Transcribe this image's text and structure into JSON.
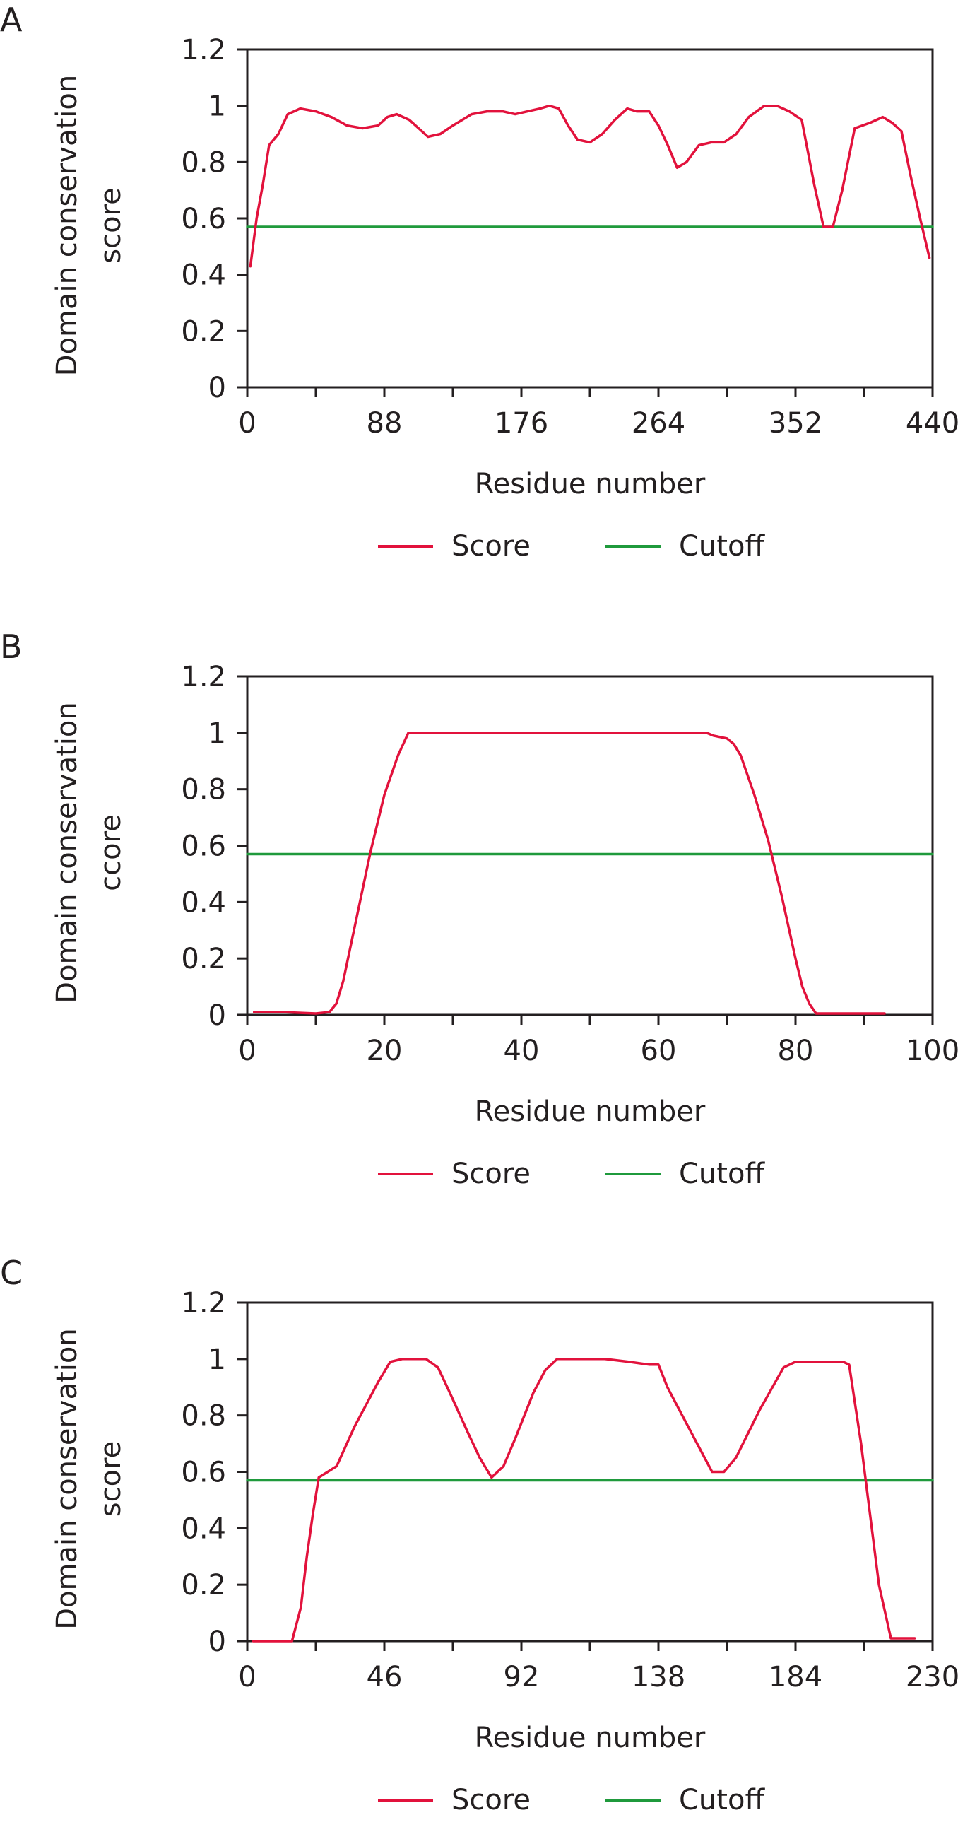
{
  "colors": {
    "score": "#e2123c",
    "cutoff": "#1f9a3c",
    "axis": "#231f20"
  },
  "chart_data": [
    {
      "panel": "A",
      "type": "line",
      "xlabel": "Residue number",
      "ylabel": [
        "Domain conservation",
        "score"
      ],
      "xlim": [
        0,
        440
      ],
      "ylim": [
        0,
        1.2
      ],
      "xticks": [
        0,
        88,
        176,
        264,
        352,
        440
      ],
      "yticks": [
        0,
        0.2,
        0.4,
        0.6,
        0.8,
        1,
        1.2
      ],
      "xtick_labels": [
        "0",
        "88",
        "176",
        "264",
        "352",
        "440"
      ],
      "ytick_labels": [
        "0",
        "0.2",
        "0.4",
        "0.6",
        "0.8",
        "1",
        "1.2"
      ],
      "legend": [
        "Score",
        "Cutoff"
      ],
      "series": [
        {
          "name": "Score",
          "color": "#e2123c",
          "x": [
            2,
            6,
            10,
            14,
            20,
            26,
            34,
            44,
            54,
            64,
            74,
            84,
            90,
            96,
            104,
            110,
            116,
            124,
            132,
            144,
            154,
            164,
            172,
            180,
            188,
            194,
            200,
            206,
            212,
            220,
            228,
            236,
            244,
            250,
            258,
            264,
            270,
            276,
            282,
            290,
            298,
            306,
            314,
            322,
            332,
            340,
            348,
            356,
            364,
            370,
            376,
            382,
            390,
            400,
            408,
            414,
            420,
            426,
            432,
            438
          ],
          "y": [
            0.43,
            0.6,
            0.72,
            0.86,
            0.9,
            0.97,
            0.99,
            0.98,
            0.96,
            0.93,
            0.92,
            0.93,
            0.96,
            0.97,
            0.95,
            0.92,
            0.89,
            0.9,
            0.93,
            0.97,
            0.98,
            0.98,
            0.97,
            0.98,
            0.99,
            1.0,
            0.99,
            0.93,
            0.88,
            0.87,
            0.9,
            0.95,
            0.99,
            0.98,
            0.98,
            0.93,
            0.86,
            0.78,
            0.8,
            0.86,
            0.87,
            0.87,
            0.9,
            0.96,
            1.0,
            1.0,
            0.98,
            0.95,
            0.72,
            0.57,
            0.57,
            0.7,
            0.92,
            0.94,
            0.96,
            0.94,
            0.91,
            0.75,
            0.6,
            0.46
          ]
        },
        {
          "name": "Cutoff",
          "color": "#1f9a3c",
          "x": [
            0,
            440
          ],
          "y": [
            0.57,
            0.57
          ]
        }
      ]
    },
    {
      "panel": "B",
      "type": "line",
      "xlabel": "Residue number",
      "ylabel": [
        "Domain conservation",
        "ccore"
      ],
      "xlim": [
        0,
        100
      ],
      "ylim": [
        0,
        1.2
      ],
      "xticks": [
        0,
        20,
        40,
        60,
        80,
        100
      ],
      "yticks": [
        0,
        0.2,
        0.4,
        0.6,
        0.8,
        1,
        1.2
      ],
      "xtick_labels": [
        "0",
        "20",
        "40",
        "60",
        "80",
        "100"
      ],
      "ytick_labels": [
        "0",
        "0.2",
        "0.4",
        "0.6",
        "0.8",
        "1",
        "1.2"
      ],
      "legend": [
        "Score",
        "Cutoff"
      ],
      "series": [
        {
          "name": "Score",
          "color": "#e2123c",
          "x": [
            1,
            5,
            10,
            12,
            13,
            14,
            16,
            18,
            20,
            22,
            23.5,
            30,
            40,
            50,
            60,
            67,
            68,
            70,
            71,
            72,
            74,
            76,
            77,
            78,
            80,
            81,
            82,
            83,
            88,
            93
          ],
          "y": [
            0.01,
            0.01,
            0.005,
            0.01,
            0.04,
            0.12,
            0.35,
            0.58,
            0.78,
            0.92,
            1.0,
            1.0,
            1.0,
            1.0,
            1.0,
            1.0,
            0.99,
            0.98,
            0.96,
            0.92,
            0.78,
            0.62,
            0.52,
            0.42,
            0.2,
            0.1,
            0.04,
            0.005,
            0.005,
            0.005
          ]
        },
        {
          "name": "Cutoff",
          "color": "#1f9a3c",
          "x": [
            0,
            100
          ],
          "y": [
            0.57,
            0.57
          ]
        }
      ]
    },
    {
      "panel": "C",
      "type": "line",
      "xlabel": "Residue number",
      "ylabel": [
        "Domain conservation",
        "score"
      ],
      "xlim": [
        0,
        230
      ],
      "ylim": [
        0,
        1.2
      ],
      "xticks": [
        0,
        46,
        92,
        138,
        184,
        230
      ],
      "yticks": [
        0,
        0.2,
        0.4,
        0.6,
        0.8,
        1,
        1.2
      ],
      "xtick_labels": [
        "0",
        "46",
        "92",
        "138",
        "184",
        "230"
      ],
      "ytick_labels": [
        "0",
        "0.2",
        "0.4",
        "0.6",
        "0.8",
        "1",
        "1.2"
      ],
      "legend": [
        "Score",
        "Cutoff"
      ],
      "series": [
        {
          "name": "Score",
          "color": "#e2123c",
          "x": [
            2,
            10,
            15,
            18,
            20,
            22,
            24,
            27,
            30,
            36,
            44,
            48,
            52,
            56,
            60,
            64,
            68,
            74,
            78,
            82,
            86,
            90,
            96,
            100,
            104,
            112,
            120,
            128,
            135,
            138,
            141,
            146,
            152,
            156,
            160,
            164,
            172,
            180,
            184,
            188,
            196,
            200,
            202,
            206,
            212,
            216,
            224
          ],
          "y": [
            0.0,
            0.0,
            0.0,
            0.12,
            0.3,
            0.45,
            0.58,
            0.6,
            0.62,
            0.76,
            0.92,
            0.99,
            1.0,
            1.0,
            1.0,
            0.97,
            0.88,
            0.74,
            0.65,
            0.58,
            0.62,
            0.72,
            0.88,
            0.96,
            1.0,
            1.0,
            1.0,
            0.99,
            0.98,
            0.98,
            0.9,
            0.8,
            0.68,
            0.6,
            0.6,
            0.65,
            0.82,
            0.97,
            0.99,
            0.99,
            0.99,
            0.99,
            0.98,
            0.7,
            0.2,
            0.01,
            0.01
          ]
        },
        {
          "name": "Cutoff",
          "color": "#1f9a3c",
          "x": [
            0,
            230
          ],
          "y": [
            0.57,
            0.57
          ]
        }
      ]
    }
  ]
}
